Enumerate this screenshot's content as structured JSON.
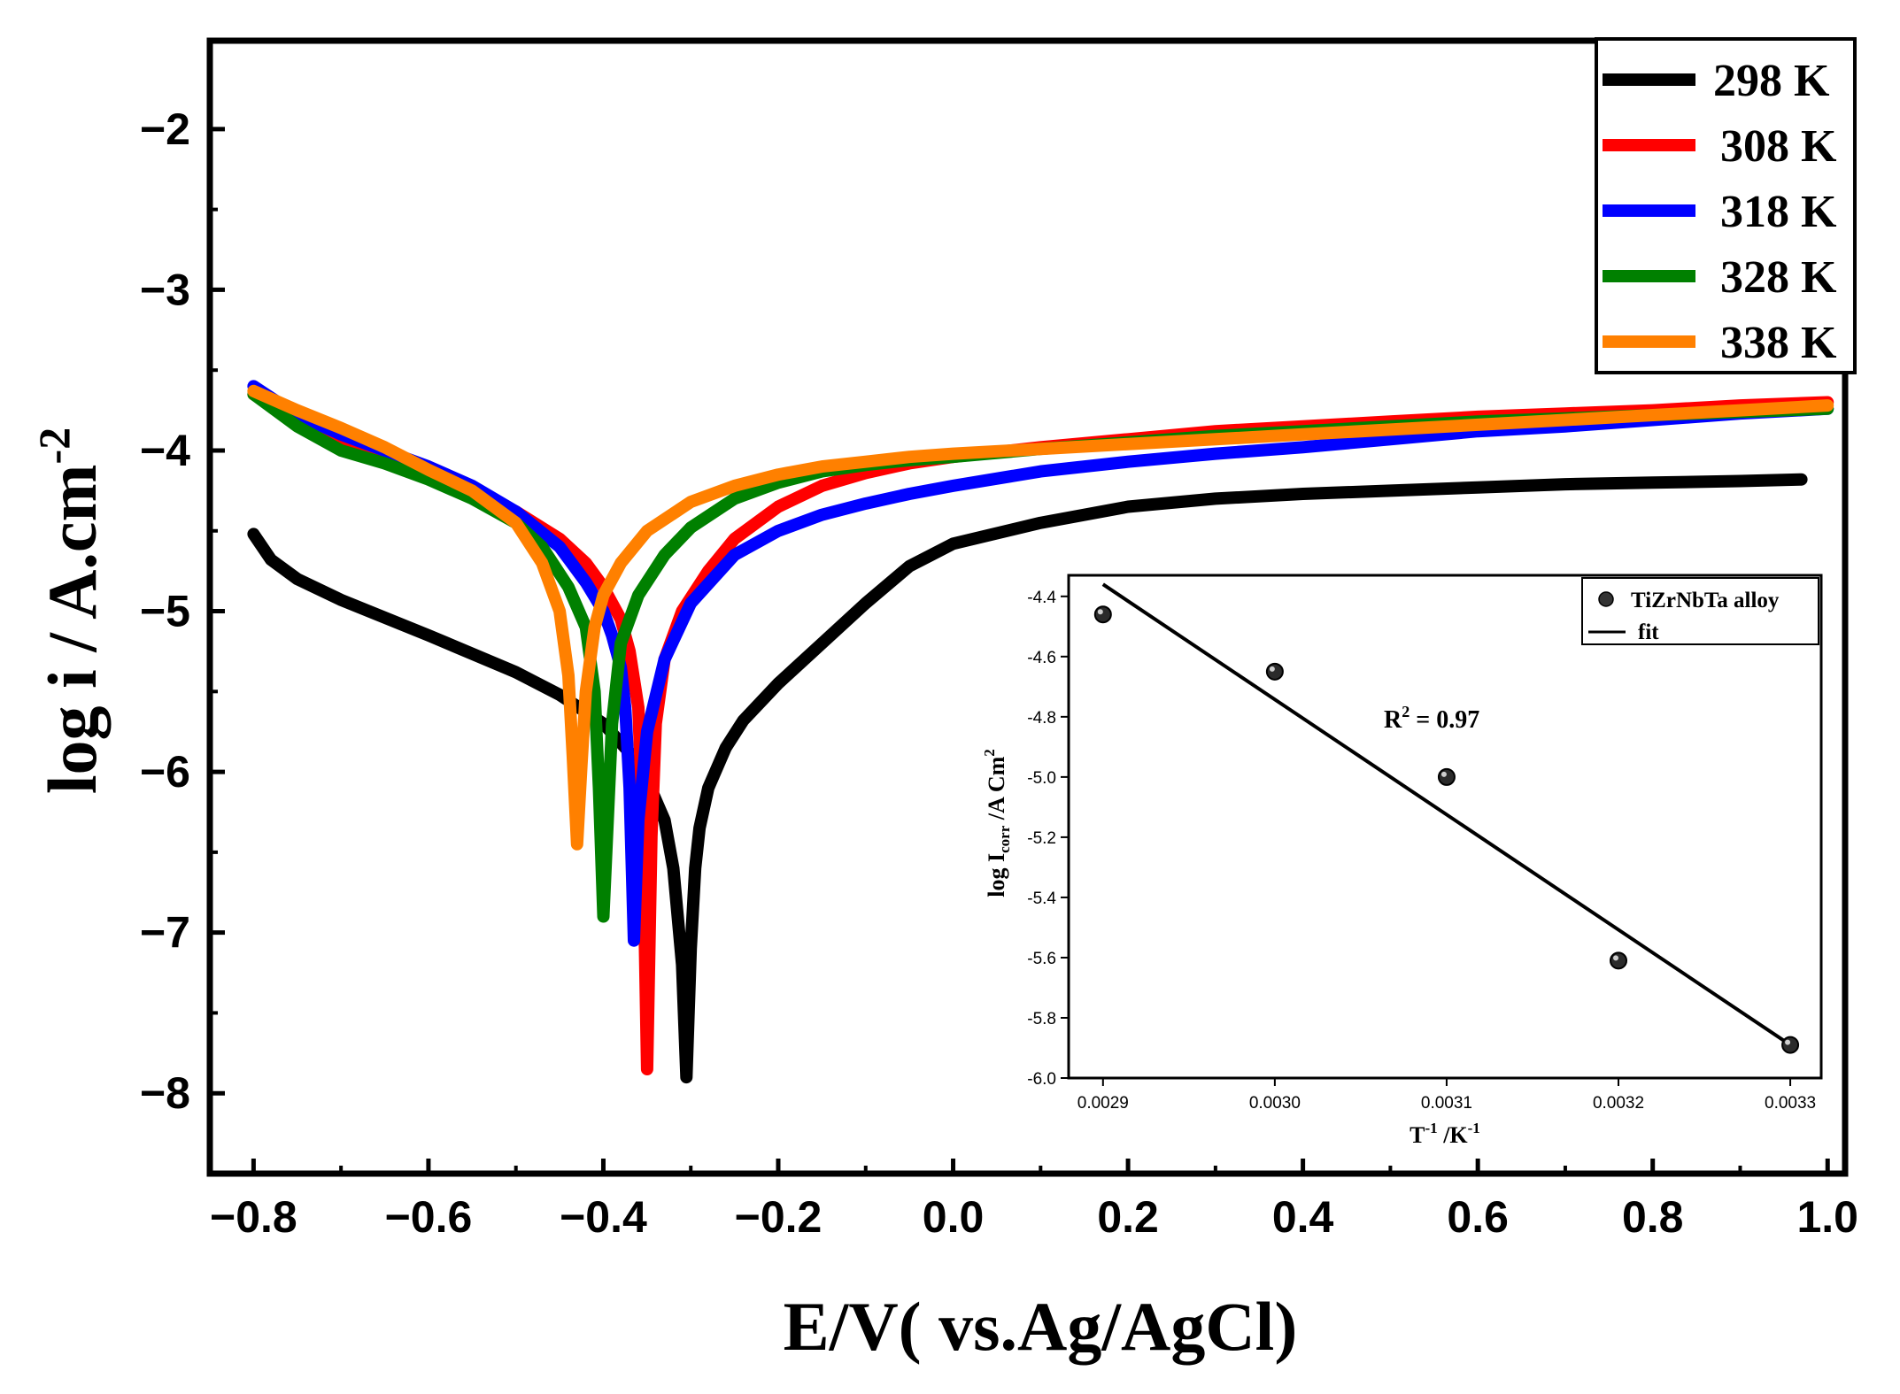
{
  "chart_data": [
    {
      "type": "line",
      "id": "main",
      "title": "",
      "xlabel": "E/V( vs.Ag/AgCl)",
      "ylabel_main": "log i / A.cm",
      "ylabel_sup": "-2",
      "xlim": [
        -0.85,
        1.02
      ],
      "ylim": [
        -8.5,
        -1.45
      ],
      "xticks": [
        -0.8,
        -0.6,
        -0.4,
        -0.2,
        0.0,
        0.2,
        0.4,
        0.6,
        0.8,
        1.0
      ],
      "xtick_labels": [
        "−0.8",
        "−0.6",
        "−0.4",
        "−0.2",
        "0.0",
        "0.2",
        "0.4",
        "0.6",
        "0.8",
        "1.0"
      ],
      "yticks": [
        -2,
        -3,
        -4,
        -5,
        -6,
        -7,
        -8
      ],
      "ytick_labels": [
        "−2",
        "−3",
        "−4",
        "−5",
        "−6",
        "−7",
        "−8"
      ],
      "legend_position": "top-right",
      "series": [
        {
          "name": "298 K",
          "color": "#000000",
          "x": [
            -0.8,
            -0.78,
            -0.75,
            -0.7,
            -0.6,
            -0.5,
            -0.45,
            -0.4,
            -0.37,
            -0.35,
            -0.33,
            -0.32,
            -0.31,
            -0.305,
            -0.3,
            -0.295,
            -0.29,
            -0.28,
            -0.26,
            -0.24,
            -0.2,
            -0.15,
            -0.1,
            -0.05,
            0.0,
            0.1,
            0.2,
            0.3,
            0.4,
            0.5,
            0.6,
            0.7,
            0.8,
            0.9,
            0.97
          ],
          "y": [
            -4.52,
            -4.68,
            -4.8,
            -4.93,
            -5.15,
            -5.38,
            -5.52,
            -5.7,
            -5.88,
            -6.05,
            -6.3,
            -6.6,
            -7.2,
            -7.9,
            -7.1,
            -6.6,
            -6.35,
            -6.1,
            -5.85,
            -5.68,
            -5.45,
            -5.2,
            -4.95,
            -4.72,
            -4.58,
            -4.45,
            -4.35,
            -4.3,
            -4.27,
            -4.25,
            -4.23,
            -4.21,
            -4.2,
            -4.19,
            -4.18
          ]
        },
        {
          "name": "308 K",
          "color": "#ff0000",
          "x": [
            -0.8,
            -0.75,
            -0.7,
            -0.65,
            -0.6,
            -0.55,
            -0.5,
            -0.45,
            -0.42,
            -0.4,
            -0.38,
            -0.37,
            -0.36,
            -0.355,
            -0.35,
            -0.345,
            -0.34,
            -0.33,
            -0.31,
            -0.28,
            -0.25,
            -0.2,
            -0.15,
            -0.1,
            -0.05,
            0.0,
            0.1,
            0.2,
            0.3,
            0.4,
            0.5,
            0.6,
            0.7,
            0.8,
            0.9,
            1.0
          ],
          "y": [
            -3.65,
            -3.82,
            -3.98,
            -4.06,
            -4.15,
            -4.25,
            -4.38,
            -4.55,
            -4.7,
            -4.85,
            -5.05,
            -5.25,
            -5.6,
            -6.3,
            -7.85,
            -6.4,
            -5.7,
            -5.3,
            -5.0,
            -4.75,
            -4.55,
            -4.35,
            -4.22,
            -4.14,
            -4.08,
            -4.04,
            -3.98,
            -3.93,
            -3.88,
            -3.85,
            -3.82,
            -3.79,
            -3.77,
            -3.75,
            -3.72,
            -3.7
          ]
        },
        {
          "name": "318 K",
          "color": "#0000ff",
          "x": [
            -0.8,
            -0.75,
            -0.7,
            -0.65,
            -0.6,
            -0.55,
            -0.5,
            -0.45,
            -0.42,
            -0.4,
            -0.39,
            -0.38,
            -0.375,
            -0.37,
            -0.365,
            -0.36,
            -0.35,
            -0.33,
            -0.3,
            -0.25,
            -0.2,
            -0.15,
            -0.1,
            -0.05,
            0.0,
            0.1,
            0.2,
            0.3,
            0.4,
            0.5,
            0.6,
            0.7,
            0.8,
            0.9,
            1.0
          ],
          "y": [
            -3.6,
            -3.78,
            -3.9,
            -4.0,
            -4.1,
            -4.22,
            -4.38,
            -4.6,
            -4.82,
            -5.0,
            -5.15,
            -5.35,
            -5.6,
            -6.1,
            -7.05,
            -6.3,
            -5.75,
            -5.3,
            -4.95,
            -4.65,
            -4.5,
            -4.4,
            -4.33,
            -4.27,
            -4.22,
            -4.13,
            -4.07,
            -4.02,
            -3.98,
            -3.93,
            -3.88,
            -3.85,
            -3.81,
            -3.77,
            -3.74
          ]
        },
        {
          "name": "328 K",
          "color": "#008000",
          "x": [
            -0.8,
            -0.75,
            -0.7,
            -0.65,
            -0.6,
            -0.55,
            -0.5,
            -0.47,
            -0.44,
            -0.42,
            -0.41,
            -0.405,
            -0.4,
            -0.395,
            -0.39,
            -0.38,
            -0.36,
            -0.33,
            -0.3,
            -0.25,
            -0.2,
            -0.15,
            -0.1,
            -0.05,
            0.0,
            0.1,
            0.2,
            0.3,
            0.4,
            0.5,
            0.6,
            0.7,
            0.8,
            0.9,
            1.0
          ],
          "y": [
            -3.65,
            -3.85,
            -4.0,
            -4.08,
            -4.18,
            -4.3,
            -4.45,
            -4.6,
            -4.85,
            -5.1,
            -5.5,
            -6.1,
            -6.9,
            -6.3,
            -5.7,
            -5.2,
            -4.9,
            -4.65,
            -4.48,
            -4.3,
            -4.2,
            -4.13,
            -4.09,
            -4.06,
            -4.04,
            -3.99,
            -3.95,
            -3.91,
            -3.88,
            -3.85,
            -3.82,
            -3.8,
            -3.78,
            -3.76,
            -3.74
          ]
        },
        {
          "name": "338 K",
          "color": "#ff8000",
          "x": [
            -0.8,
            -0.75,
            -0.7,
            -0.65,
            -0.6,
            -0.55,
            -0.5,
            -0.47,
            -0.45,
            -0.44,
            -0.435,
            -0.43,
            -0.425,
            -0.42,
            -0.41,
            -0.4,
            -0.38,
            -0.35,
            -0.3,
            -0.25,
            -0.2,
            -0.15,
            -0.1,
            -0.05,
            0.0,
            0.1,
            0.2,
            0.3,
            0.4,
            0.5,
            0.6,
            0.7,
            0.8,
            0.9,
            1.0
          ],
          "y": [
            -3.63,
            -3.75,
            -3.86,
            -3.98,
            -4.12,
            -4.25,
            -4.45,
            -4.7,
            -5.0,
            -5.4,
            -5.9,
            -6.45,
            -5.95,
            -5.5,
            -5.1,
            -4.9,
            -4.7,
            -4.5,
            -4.32,
            -4.22,
            -4.15,
            -4.1,
            -4.07,
            -4.04,
            -4.02,
            -3.99,
            -3.96,
            -3.93,
            -3.9,
            -3.87,
            -3.84,
            -3.81,
            -3.78,
            -3.75,
            -3.72
          ]
        }
      ]
    },
    {
      "type": "scatter",
      "id": "inset",
      "xlabel_main": "T",
      "xlabel_sup1": "-1",
      "xlabel_mid": " /K",
      "xlabel_sup2": "-1",
      "ylabel_main": "log I",
      "ylabel_sub": "corr",
      "ylabel_mid": " /A Cm",
      "ylabel_sup": "2",
      "xlim": [
        0.00288,
        0.003318
      ],
      "ylim": [
        -6.0,
        -4.33
      ],
      "xticks": [
        0.0029,
        0.003,
        0.0031,
        0.0032,
        0.0033
      ],
      "xtick_labels": [
        "0.0029",
        "0.0030",
        "0.0031",
        "0.0032",
        "0.0033"
      ],
      "yticks": [
        -4.4,
        -4.6,
        -4.8,
        -5.0,
        -5.2,
        -5.4,
        -5.6,
        -5.8,
        -6.0
      ],
      "ytick_labels": [
        "-4.4",
        "-4.6",
        "-4.8",
        "-5.0",
        "-5.2",
        "-5.4",
        "-5.6",
        "-5.8",
        "-6.0"
      ],
      "points": {
        "name": "TiZrNbTa alloy",
        "x": [
          0.0029,
          0.003,
          0.0031,
          0.0032,
          0.0033
        ],
        "y": [
          -4.46,
          -4.65,
          -5.0,
          -5.61,
          -5.89
        ]
      },
      "fit": {
        "name": "fit",
        "x": [
          0.0029,
          0.0033
        ],
        "y": [
          -4.36,
          -5.89
        ]
      },
      "annotation_main": "R",
      "annotation_sup": "2",
      "annotation_rest": " = 0.97"
    }
  ]
}
